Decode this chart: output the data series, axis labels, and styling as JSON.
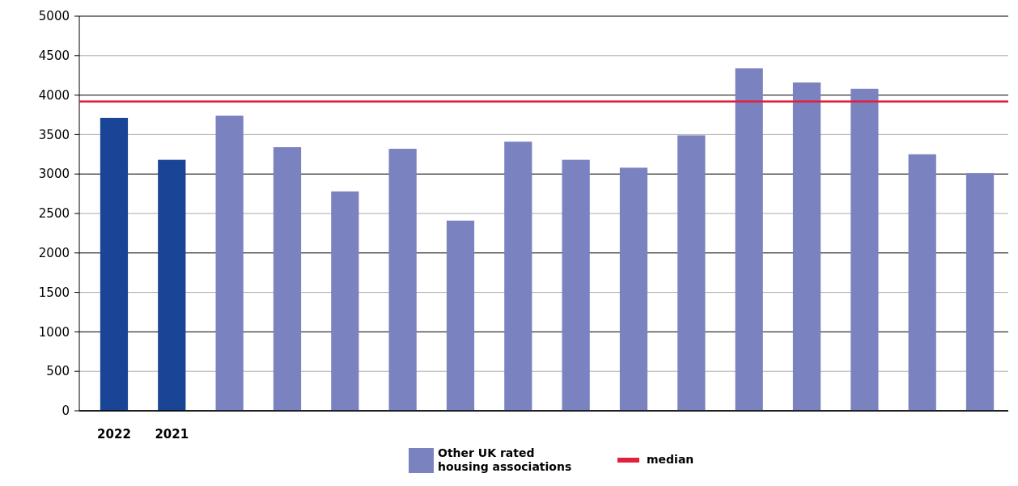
{
  "chart_data": {
    "type": "bar",
    "categories": [
      "2022",
      "2021",
      null,
      null,
      null,
      null,
      null,
      null,
      null,
      null,
      null,
      null,
      null,
      null,
      null,
      null
    ],
    "series": [
      {
        "color": "#1a4597",
        "values": [
          3710,
          3180,
          null,
          null,
          null,
          null,
          null,
          null,
          null,
          null,
          null,
          null,
          null,
          null,
          null,
          null
        ]
      },
      {
        "name": "Other UK rated housing associations",
        "color": "#7a83c0",
        "values": [
          null,
          null,
          3740,
          3340,
          2780,
          3320,
          2410,
          3410,
          3180,
          3080,
          3490,
          4340,
          4160,
          4080,
          3250,
          3010
        ]
      }
    ],
    "ylim": [
      0,
      5000
    ],
    "yticks": [
      0,
      500,
      1000,
      1500,
      2000,
      2500,
      3000,
      3500,
      4000,
      4500,
      5000
    ],
    "grid": "y",
    "ref_lines": [
      {
        "axis": "y",
        "value": 3920,
        "label": "median",
        "color": "#e0203c"
      }
    ],
    "legend": "bottom"
  }
}
